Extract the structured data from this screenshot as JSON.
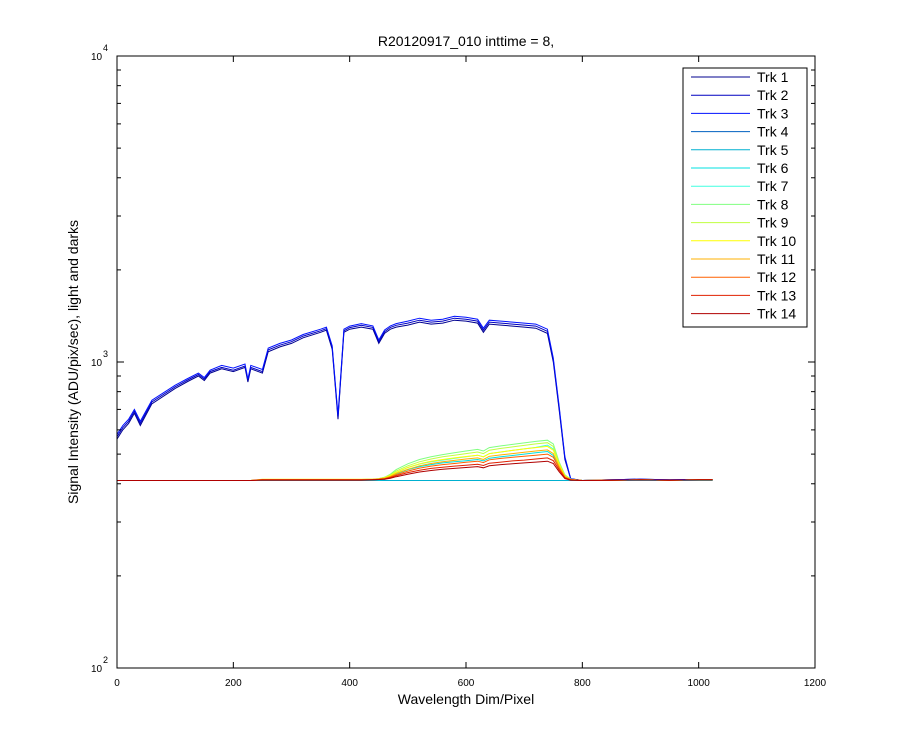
{
  "chart_data": {
    "type": "line",
    "title": "R20120917_010 inttime = 8,",
    "xlabel": "Wavelength Dim/Pixel",
    "ylabel": "Signal Intensity (ADU/pix/sec), light and darks",
    "xlim": [
      0,
      1200
    ],
    "ylim": [
      100,
      10000
    ],
    "yscale": "log",
    "grid": false,
    "legend_position": "top-right",
    "x_ticks": [
      0,
      200,
      400,
      600,
      800,
      1000,
      1200
    ],
    "x_tick_labels": [
      "0",
      "200",
      "400",
      "600",
      "800",
      "1000",
      "1200"
    ],
    "y_ticks": [
      100,
      1000,
      10000
    ],
    "y_tick_base": "10",
    "y_tick_exponents": [
      "2",
      "3",
      "4"
    ],
    "x": [
      0,
      10,
      20,
      30,
      40,
      60,
      100,
      120,
      140,
      150,
      160,
      180,
      200,
      220,
      225,
      230,
      250,
      260,
      280,
      300,
      320,
      350,
      360,
      370,
      380,
      390,
      400,
      420,
      440,
      450,
      460,
      470,
      480,
      500,
      520,
      540,
      560,
      580,
      600,
      620,
      630,
      640,
      660,
      680,
      700,
      720,
      740,
      750,
      760,
      770,
      780,
      800,
      850,
      900,
      950,
      1000,
      1024
    ],
    "series": [
      {
        "name": "Trk 1",
        "color": "#00008f",
        "values": [
          560,
          600,
          630,
          680,
          620,
          730,
          820,
          860,
          900,
          870,
          920,
          950,
          930,
          960,
          860,
          950,
          920,
          1080,
          1120,
          1150,
          1200,
          1250,
          1270,
          1100,
          650,
          1250,
          1280,
          1300,
          1280,
          1150,
          1240,
          1280,
          1300,
          1320,
          1350,
          1330,
          1340,
          1370,
          1360,
          1340,
          1250,
          1330,
          1320,
          1310,
          1300,
          1290,
          1240,
          1000,
          700,
          480,
          415,
          410,
          412,
          414,
          412,
          413,
          413
        ]
      },
      {
        "name": "Trk 2",
        "color": "#0000c0",
        "values": [
          570,
          610,
          640,
          690,
          630,
          740,
          830,
          870,
          910,
          880,
          930,
          960,
          940,
          970,
          870,
          960,
          930,
          1095,
          1135,
          1165,
          1215,
          1265,
          1285,
          1115,
          660,
          1265,
          1295,
          1318,
          1297,
          1165,
          1256,
          1297,
          1318,
          1340,
          1370,
          1350,
          1360,
          1390,
          1380,
          1360,
          1270,
          1350,
          1340,
          1330,
          1320,
          1310,
          1260,
          1015,
          710,
          485,
          415,
          410,
          412,
          414,
          412,
          413,
          413
        ]
      },
      {
        "name": "Trk 3",
        "color": "#0010ff",
        "values": [
          580,
          620,
          650,
          700,
          640,
          750,
          840,
          880,
          920,
          890,
          940,
          975,
          955,
          985,
          880,
          975,
          945,
          1110,
          1150,
          1180,
          1230,
          1280,
          1300,
          1130,
          670,
          1280,
          1310,
          1335,
          1312,
          1180,
          1272,
          1312,
          1335,
          1360,
          1390,
          1370,
          1380,
          1410,
          1400,
          1380,
          1290,
          1370,
          1360,
          1350,
          1340,
          1330,
          1280,
          1030,
          720,
          490,
          416,
          410,
          412,
          414,
          412,
          413,
          413
        ]
      },
      {
        "name": "Trk 4",
        "color": "#0060c0",
        "values": [
          410,
          410,
          410,
          410,
          410,
          410,
          410,
          410,
          410,
          410,
          410,
          410,
          410,
          410,
          410,
          410,
          410,
          410,
          410,
          410,
          410,
          410,
          410,
          410,
          410,
          410,
          410,
          410,
          410,
          410,
          410,
          410,
          410,
          410,
          410,
          410,
          410,
          410,
          410,
          410,
          410,
          410,
          410,
          410,
          410,
          410,
          410,
          410,
          410,
          410,
          410,
          410,
          410,
          410,
          410,
          410,
          410
        ]
      },
      {
        "name": "Trk 5",
        "color": "#00b0d0",
        "values": [
          410,
          410,
          410,
          410,
          410,
          410,
          410,
          410,
          410,
          410,
          410,
          410,
          410,
          410,
          410,
          410,
          410,
          410,
          410,
          410,
          410,
          410,
          410,
          410,
          410,
          410,
          410,
          410,
          410,
          410,
          410,
          410,
          410,
          410,
          410,
          410,
          410,
          410,
          410,
          410,
          410,
          410,
          410,
          410,
          410,
          410,
          410,
          410,
          410,
          410,
          410,
          410,
          410,
          410,
          410,
          410,
          410
        ]
      },
      {
        "name": "Trk 6",
        "color": "#00e0e0",
        "values": [
          410,
          410,
          410,
          410,
          410,
          410,
          410,
          410,
          410,
          410,
          410,
          410,
          410,
          410,
          410,
          410,
          411,
          411,
          411,
          411,
          411,
          411,
          411,
          411,
          411,
          411,
          411,
          411,
          412,
          412,
          413,
          420,
          430,
          445,
          455,
          462,
          468,
          472,
          476,
          480,
          475,
          485,
          490,
          495,
          500,
          505,
          510,
          495,
          450,
          420,
          412,
          410,
          411,
          412,
          411,
          412,
          412
        ]
      },
      {
        "name": "Trk 7",
        "color": "#40ffe0",
        "values": [
          410,
          410,
          410,
          410,
          410,
          410,
          410,
          410,
          410,
          410,
          410,
          410,
          410,
          410,
          410,
          410,
          412,
          412,
          412,
          412,
          412,
          412,
          412,
          412,
          412,
          412,
          412,
          412,
          413,
          414,
          416,
          424,
          435,
          452,
          464,
          472,
          478,
          484,
          490,
          496,
          490,
          502,
          508,
          514,
          520,
          526,
          535,
          520,
          462,
          424,
          413,
          410,
          411,
          412,
          411,
          412,
          412
        ]
      },
      {
        "name": "Trk 8",
        "color": "#80ff80",
        "values": [
          410,
          410,
          410,
          410,
          410,
          410,
          410,
          410,
          410,
          410,
          410,
          410,
          410,
          410,
          410,
          410,
          413,
          413,
          413,
          413,
          413,
          413,
          413,
          413,
          413,
          413,
          413,
          413,
          414,
          416,
          420,
          430,
          445,
          465,
          480,
          490,
          498,
          505,
          512,
          518,
          512,
          525,
          532,
          538,
          544,
          550,
          555,
          540,
          472,
          428,
          414,
          410,
          411,
          412,
          411,
          412,
          412
        ]
      },
      {
        "name": "Trk 9",
        "color": "#c0ff40",
        "values": [
          410,
          410,
          410,
          410,
          410,
          410,
          410,
          410,
          410,
          410,
          410,
          410,
          410,
          410,
          410,
          410,
          413,
          413,
          413,
          413,
          413,
          413,
          413,
          413,
          413,
          413,
          413,
          413,
          414,
          416,
          420,
          428,
          440,
          458,
          472,
          482,
          490,
          496,
          502,
          508,
          502,
          515,
          522,
          528,
          534,
          540,
          545,
          530,
          468,
          426,
          414,
          410,
          411,
          412,
          411,
          412,
          412
        ]
      },
      {
        "name": "Trk 10",
        "color": "#ffff00",
        "values": [
          410,
          410,
          410,
          410,
          410,
          410,
          410,
          410,
          410,
          410,
          410,
          410,
          410,
          410,
          410,
          410,
          414,
          414,
          414,
          414,
          414,
          414,
          414,
          414,
          414,
          414,
          414,
          414,
          414,
          415,
          418,
          425,
          436,
          452,
          465,
          474,
          480,
          486,
          491,
          496,
          490,
          502,
          508,
          514,
          520,
          525,
          530,
          515,
          462,
          424,
          413,
          410,
          411,
          412,
          411,
          412,
          412
        ]
      },
      {
        "name": "Trk 11",
        "color": "#ffb000",
        "values": [
          410,
          410,
          410,
          410,
          410,
          410,
          410,
          410,
          410,
          410,
          410,
          410,
          410,
          410,
          410,
          410,
          413,
          413,
          413,
          413,
          413,
          413,
          413,
          413,
          413,
          413,
          413,
          413,
          414,
          415,
          417,
          423,
          432,
          446,
          458,
          466,
          472,
          477,
          482,
          486,
          480,
          492,
          497,
          502,
          507,
          512,
          516,
          502,
          456,
          422,
          413,
          410,
          411,
          412,
          411,
          412,
          412
        ]
      },
      {
        "name": "Trk 12",
        "color": "#ff6000",
        "values": [
          410,
          410,
          410,
          410,
          410,
          410,
          410,
          410,
          410,
          410,
          410,
          410,
          410,
          410,
          410,
          410,
          412,
          412,
          412,
          412,
          412,
          412,
          412,
          412,
          412,
          412,
          412,
          412,
          413,
          414,
          416,
          421,
          428,
          440,
          450,
          457,
          462,
          466,
          470,
          474,
          469,
          479,
          484,
          488,
          492,
          496,
          500,
          488,
          450,
          420,
          412,
          410,
          411,
          412,
          411,
          412,
          412
        ]
      },
      {
        "name": "Trk 13",
        "color": "#e02000",
        "values": [
          410,
          410,
          410,
          410,
          410,
          410,
          410,
          410,
          410,
          410,
          410,
          410,
          410,
          410,
          410,
          410,
          412,
          412,
          412,
          412,
          412,
          412,
          412,
          412,
          412,
          412,
          412,
          412,
          412,
          413,
          415,
          419,
          425,
          435,
          443,
          449,
          453,
          457,
          460,
          463,
          459,
          467,
          471,
          475,
          478,
          482,
          486,
          476,
          444,
          418,
          412,
          410,
          411,
          412,
          411,
          412,
          412
        ]
      },
      {
        "name": "Trk 14",
        "color": "#b00000",
        "values": [
          410,
          410,
          410,
          410,
          410,
          410,
          410,
          410,
          410,
          410,
          410,
          410,
          410,
          410,
          410,
          410,
          411,
          411,
          411,
          411,
          411,
          411,
          411,
          411,
          411,
          411,
          411,
          411,
          412,
          413,
          414,
          417,
          422,
          430,
          437,
          442,
          446,
          449,
          452,
          455,
          451,
          458,
          462,
          465,
          468,
          471,
          474,
          466,
          438,
          416,
          411,
          410,
          411,
          412,
          411,
          412,
          412
        ]
      }
    ]
  }
}
